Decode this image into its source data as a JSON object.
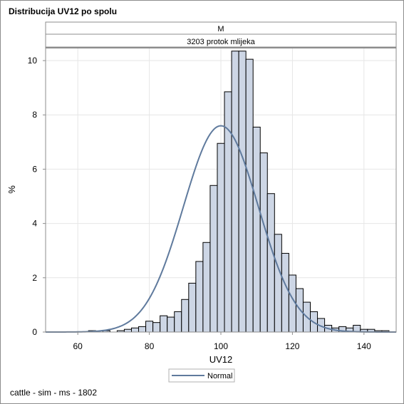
{
  "title": "Distribucija UV12 po spolu",
  "panel_header_1": "M",
  "panel_header_2": "3203 protok mlijeka",
  "footnote": "cattle - sim - ms - 1802",
  "colors": {
    "bar_fill": "#cdd6e5",
    "bar_stroke": "#000000",
    "curve": "#5f7a9d",
    "grid": "#e6e6e6",
    "header_fill": "#ffffff",
    "axis": "#8c8c8c"
  },
  "chart_data": {
    "type": "bar",
    "subtype": "histogram with normal density curve",
    "xlabel": "UV12",
    "ylabel": "%",
    "xlim": [
      51,
      149
    ],
    "ylim": [
      0,
      10.5
    ],
    "xticks": [
      60,
      80,
      100,
      120,
      140
    ],
    "yticks": [
      0,
      2,
      4,
      6,
      8,
      10
    ],
    "grid": true,
    "bin_width": 2,
    "bins": [
      {
        "x": 64,
        "y": 0.05
      },
      {
        "x": 66,
        "y": 0.0
      },
      {
        "x": 68,
        "y": 0.05
      },
      {
        "x": 70,
        "y": 0.0
      },
      {
        "x": 72,
        "y": 0.05
      },
      {
        "x": 74,
        "y": 0.1
      },
      {
        "x": 76,
        "y": 0.15
      },
      {
        "x": 78,
        "y": 0.2
      },
      {
        "x": 80,
        "y": 0.4
      },
      {
        "x": 82,
        "y": 0.35
      },
      {
        "x": 84,
        "y": 0.6
      },
      {
        "x": 86,
        "y": 0.55
      },
      {
        "x": 88,
        "y": 0.75
      },
      {
        "x": 90,
        "y": 1.2
      },
      {
        "x": 92,
        "y": 1.8
      },
      {
        "x": 94,
        "y": 2.6
      },
      {
        "x": 96,
        "y": 3.3
      },
      {
        "x": 98,
        "y": 5.4
      },
      {
        "x": 100,
        "y": 6.95
      },
      {
        "x": 102,
        "y": 8.85
      },
      {
        "x": 104,
        "y": 10.35
      },
      {
        "x": 106,
        "y": 10.35
      },
      {
        "x": 108,
        "y": 10.05
      },
      {
        "x": 110,
        "y": 7.55
      },
      {
        "x": 112,
        "y": 6.6
      },
      {
        "x": 114,
        "y": 5.1
      },
      {
        "x": 116,
        "y": 3.6
      },
      {
        "x": 118,
        "y": 2.9
      },
      {
        "x": 120,
        "y": 2.1
      },
      {
        "x": 122,
        "y": 1.6
      },
      {
        "x": 124,
        "y": 1.1
      },
      {
        "x": 126,
        "y": 0.75
      },
      {
        "x": 128,
        "y": 0.5
      },
      {
        "x": 130,
        "y": 0.25
      },
      {
        "x": 132,
        "y": 0.15
      },
      {
        "x": 134,
        "y": 0.2
      },
      {
        "x": 136,
        "y": 0.15
      },
      {
        "x": 138,
        "y": 0.25
      },
      {
        "x": 140,
        "y": 0.1
      },
      {
        "x": 142,
        "y": 0.1
      },
      {
        "x": 144,
        "y": 0.05
      },
      {
        "x": 146,
        "y": 0.05
      }
    ],
    "normal_curve": {
      "name": "Normal",
      "mean": 100,
      "sd": 10.5,
      "peak_percent": 7.6
    },
    "legend": {
      "entries": [
        "Normal"
      ],
      "position": "bottom"
    }
  }
}
